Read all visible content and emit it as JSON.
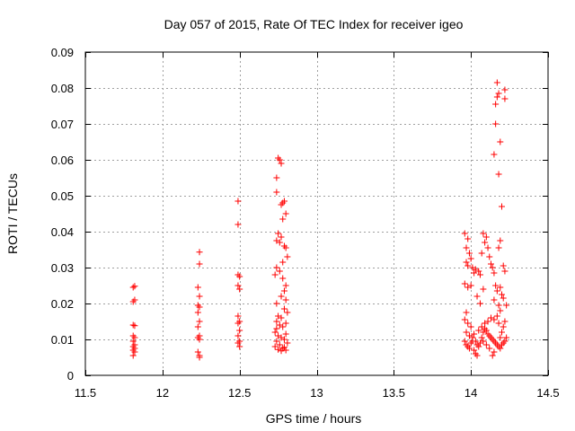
{
  "chart_data": {
    "type": "scatter",
    "title": "Day 057 of 2015, Rate Of TEC Index for receiver igeo",
    "xlabel": "GPS time / hours",
    "ylabel": "ROTI / TECUs",
    "xlim": [
      11.5,
      14.5
    ],
    "ylim": [
      0,
      0.09
    ],
    "x_ticks": [
      11.5,
      12,
      12.5,
      13,
      13.5,
      14,
      14.5
    ],
    "x_tick_labels": [
      "11.5",
      "12",
      "12.5",
      "13",
      "13.5",
      "14",
      "14.5"
    ],
    "y_ticks": [
      0,
      0.01,
      0.02,
      0.03,
      0.04,
      0.05,
      0.06,
      0.07,
      0.08,
      0.09
    ],
    "y_tick_labels": [
      "0",
      "0.01",
      "0.02",
      "0.03",
      "0.04",
      "0.05",
      "0.06",
      "0.07",
      "0.08",
      "0.09"
    ],
    "grid": true,
    "marker": "+",
    "color": "#ff0000",
    "series": [
      {
        "name": "ROTI",
        "points": [
          [
            11.81,
            0.0245
          ],
          [
            11.82,
            0.0248
          ],
          [
            11.81,
            0.0205
          ],
          [
            11.82,
            0.021
          ],
          [
            11.81,
            0.014
          ],
          [
            11.82,
            0.0138
          ],
          [
            11.81,
            0.011
          ],
          [
            11.82,
            0.0105
          ],
          [
            11.81,
            0.0095
          ],
          [
            11.82,
            0.0085
          ],
          [
            11.81,
            0.008
          ],
          [
            11.82,
            0.0075
          ],
          [
            11.81,
            0.007
          ],
          [
            11.82,
            0.0065
          ],
          [
            11.81,
            0.0055
          ],
          [
            12.24,
            0.0343
          ],
          [
            12.24,
            0.031
          ],
          [
            12.23,
            0.0245
          ],
          [
            12.24,
            0.022
          ],
          [
            12.23,
            0.0195
          ],
          [
            12.24,
            0.019
          ],
          [
            12.23,
            0.0175
          ],
          [
            12.24,
            0.015
          ],
          [
            12.23,
            0.0135
          ],
          [
            12.24,
            0.011
          ],
          [
            12.23,
            0.0105
          ],
          [
            12.24,
            0.01
          ],
          [
            12.23,
            0.0065
          ],
          [
            12.24,
            0.0055
          ],
          [
            12.24,
            0.005
          ],
          [
            12.49,
            0.0485
          ],
          [
            12.49,
            0.042
          ],
          [
            12.49,
            0.028
          ],
          [
            12.5,
            0.0275
          ],
          [
            12.49,
            0.025
          ],
          [
            12.5,
            0.024
          ],
          [
            12.49,
            0.0165
          ],
          [
            12.5,
            0.015
          ],
          [
            12.49,
            0.0145
          ],
          [
            12.5,
            0.0125
          ],
          [
            12.49,
            0.011
          ],
          [
            12.5,
            0.0095
          ],
          [
            12.49,
            0.009
          ],
          [
            12.5,
            0.008
          ],
          [
            12.75,
            0.0605
          ],
          [
            12.76,
            0.06
          ],
          [
            12.77,
            0.059
          ],
          [
            12.74,
            0.055
          ],
          [
            12.74,
            0.051
          ],
          [
            12.79,
            0.0485
          ],
          [
            12.78,
            0.048
          ],
          [
            12.77,
            0.0475
          ],
          [
            12.8,
            0.045
          ],
          [
            12.78,
            0.0435
          ],
          [
            12.75,
            0.0395
          ],
          [
            12.77,
            0.0385
          ],
          [
            12.74,
            0.0375
          ],
          [
            12.76,
            0.037
          ],
          [
            12.79,
            0.036
          ],
          [
            12.8,
            0.0355
          ],
          [
            12.81,
            0.033
          ],
          [
            12.78,
            0.0315
          ],
          [
            12.74,
            0.03
          ],
          [
            12.76,
            0.029
          ],
          [
            12.73,
            0.028
          ],
          [
            12.78,
            0.027
          ],
          [
            12.8,
            0.025
          ],
          [
            12.79,
            0.0235
          ],
          [
            12.77,
            0.022
          ],
          [
            12.8,
            0.021
          ],
          [
            12.74,
            0.02
          ],
          [
            12.79,
            0.0185
          ],
          [
            12.81,
            0.0175
          ],
          [
            12.75,
            0.0165
          ],
          [
            12.77,
            0.016
          ],
          [
            12.74,
            0.015
          ],
          [
            12.8,
            0.0145
          ],
          [
            12.76,
            0.014
          ],
          [
            12.78,
            0.0135
          ],
          [
            12.74,
            0.013
          ],
          [
            12.73,
            0.012
          ],
          [
            12.8,
            0.0115
          ],
          [
            12.75,
            0.011
          ],
          [
            12.77,
            0.0105
          ],
          [
            12.79,
            0.01
          ],
          [
            12.74,
            0.0095
          ],
          [
            12.81,
            0.009
          ],
          [
            12.76,
            0.0085
          ],
          [
            12.73,
            0.008
          ],
          [
            12.78,
            0.0075
          ],
          [
            12.8,
            0.007
          ],
          [
            12.75,
            0.0072
          ],
          [
            12.77,
            0.0068
          ],
          [
            12.79,
            0.0078
          ],
          [
            13.96,
            0.0395
          ],
          [
            13.98,
            0.038
          ],
          [
            13.97,
            0.0355
          ],
          [
            13.99,
            0.034
          ],
          [
            14.0,
            0.0325
          ],
          [
            13.97,
            0.0315
          ],
          [
            13.98,
            0.0305
          ],
          [
            14.01,
            0.03
          ],
          [
            14.03,
            0.0295
          ],
          [
            14.05,
            0.029
          ],
          [
            14.02,
            0.0285
          ],
          [
            14.06,
            0.028
          ],
          [
            14.08,
            0.0395
          ],
          [
            14.1,
            0.0385
          ],
          [
            14.09,
            0.037
          ],
          [
            14.11,
            0.0355
          ],
          [
            14.07,
            0.034
          ],
          [
            14.12,
            0.033
          ],
          [
            14.13,
            0.031
          ],
          [
            14.14,
            0.03
          ],
          [
            13.96,
            0.0255
          ],
          [
            13.98,
            0.0245
          ],
          [
            14.0,
            0.025
          ],
          [
            13.97,
            0.0175
          ],
          [
            14.04,
            0.022
          ],
          [
            14.06,
            0.02
          ],
          [
            14.08,
            0.024
          ],
          [
            14.15,
            0.0285
          ],
          [
            14.16,
            0.025
          ],
          [
            14.17,
            0.0235
          ],
          [
            14.15,
            0.021
          ],
          [
            14.18,
            0.0195
          ],
          [
            14.19,
            0.018
          ],
          [
            14.2,
            0.0225
          ],
          [
            14.21,
            0.0215
          ],
          [
            14.19,
            0.0245
          ],
          [
            14.22,
            0.029
          ],
          [
            14.21,
            0.0305
          ],
          [
            14.18,
            0.0355
          ],
          [
            14.19,
            0.0375
          ],
          [
            14.15,
            0.0615
          ],
          [
            14.19,
            0.065
          ],
          [
            14.18,
            0.056
          ],
          [
            14.2,
            0.047
          ],
          [
            14.16,
            0.07
          ],
          [
            14.16,
            0.0755
          ],
          [
            14.17,
            0.0775
          ],
          [
            14.18,
            0.0785
          ],
          [
            14.17,
            0.0815
          ],
          [
            14.22,
            0.0795
          ],
          [
            14.22,
            0.077
          ],
          [
            14.23,
            0.0195
          ],
          [
            14.22,
            0.015
          ],
          [
            14.21,
            0.0135
          ],
          [
            13.96,
            0.0155
          ],
          [
            13.98,
            0.0145
          ],
          [
            14.0,
            0.0135
          ],
          [
            13.97,
            0.012
          ],
          [
            13.99,
            0.011
          ],
          [
            14.01,
            0.0105
          ],
          [
            14.02,
            0.0115
          ],
          [
            14.03,
            0.0095
          ],
          [
            14.04,
            0.0085
          ],
          [
            14.05,
            0.008
          ],
          [
            14.02,
            0.007
          ],
          [
            14.03,
            0.006
          ],
          [
            14.04,
            0.0055
          ],
          [
            14.06,
            0.009
          ],
          [
            14.07,
            0.0105
          ],
          [
            14.08,
            0.012
          ],
          [
            14.09,
            0.013
          ],
          [
            14.1,
            0.0125
          ],
          [
            14.11,
            0.0115
          ],
          [
            14.12,
            0.011
          ],
          [
            14.13,
            0.0105
          ],
          [
            14.14,
            0.01
          ],
          [
            14.15,
            0.0095
          ],
          [
            14.16,
            0.009
          ],
          [
            14.17,
            0.0085
          ],
          [
            14.18,
            0.008
          ],
          [
            14.19,
            0.0075
          ],
          [
            14.2,
            0.0085
          ],
          [
            14.21,
            0.009
          ],
          [
            14.22,
            0.0095
          ],
          [
            14.23,
            0.0105
          ],
          [
            14.14,
            0.0055
          ],
          [
            14.15,
            0.0065
          ],
          [
            14.12,
            0.0075
          ],
          [
            14.1,
            0.0085
          ],
          [
            14.08,
            0.0095
          ],
          [
            13.96,
            0.0095
          ],
          [
            13.97,
            0.0085
          ],
          [
            13.98,
            0.008
          ],
          [
            13.99,
            0.0075
          ],
          [
            14.0,
            0.009
          ],
          [
            14.01,
            0.0095
          ],
          [
            14.05,
            0.0125
          ],
          [
            14.07,
            0.0135
          ],
          [
            14.09,
            0.0145
          ],
          [
            14.11,
            0.015
          ],
          [
            14.13,
            0.016
          ],
          [
            14.15,
            0.0155
          ],
          [
            14.17,
            0.0165
          ],
          [
            14.18,
            0.0145
          ],
          [
            14.2,
            0.012
          ],
          [
            14.19,
            0.0105
          ]
        ]
      }
    ]
  }
}
